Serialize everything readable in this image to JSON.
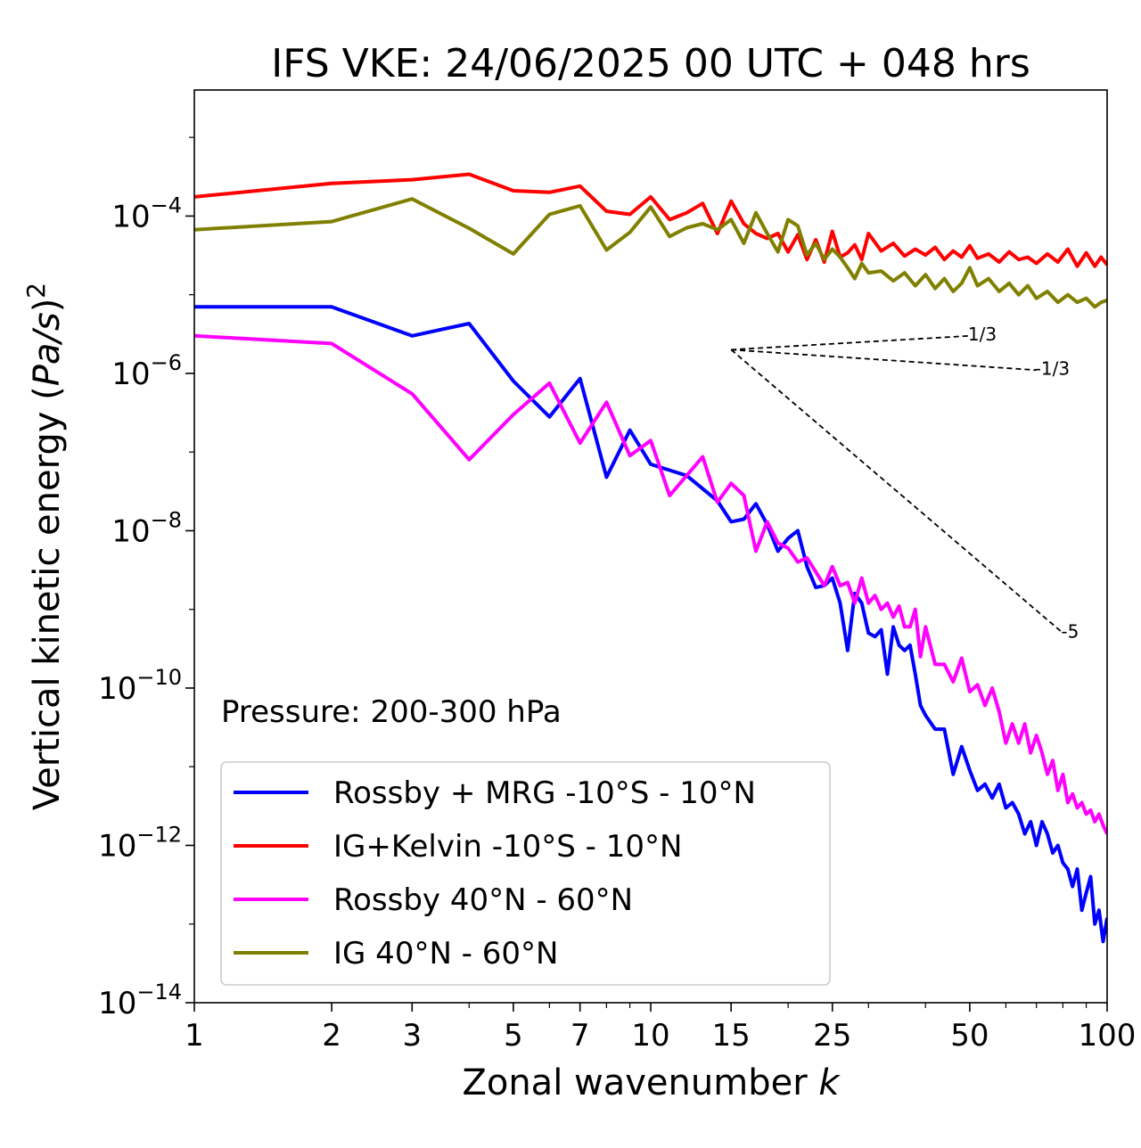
{
  "chart_data": {
    "type": "line",
    "title": "IFS VKE: 24/06/2025 00 UTC + 048 hrs",
    "xlabel": "Zonal wavenumber k",
    "xlabel_main": "Zonal wavenumber ",
    "xlabel_var": "k",
    "ylabel_main": "Vertical kinetic energy (",
    "ylabel_var": "Pa/s",
    "ylabel_close": ")",
    "ylabel_exp": "2",
    "x_scale": "log",
    "y_scale": "log",
    "xlim": [
      1,
      100
    ],
    "ylim": [
      1e-14,
      0.004
    ],
    "x_ticks": [
      1,
      2,
      3,
      5,
      7,
      10,
      15,
      25,
      50,
      100
    ],
    "x_tick_labels": [
      "1",
      "2",
      "3",
      "5",
      "7",
      "10",
      "15",
      "25",
      "50",
      "100"
    ],
    "y_ticks": [
      {
        "value": 0.0001,
        "base": "10",
        "exp": "−4"
      },
      {
        "value": 1e-06,
        "base": "10",
        "exp": "−6"
      },
      {
        "value": 1e-08,
        "base": "10",
        "exp": "−8"
      },
      {
        "value": 1e-10,
        "base": "10",
        "exp": "−10"
      },
      {
        "value": 1e-12,
        "base": "10",
        "exp": "−12"
      },
      {
        "value": 1e-14,
        "base": "10",
        "exp": "−14"
      }
    ],
    "annotation": "Pressure: 200-300 hPa",
    "grid": false,
    "legend_position": "lower-left",
    "series": [
      {
        "name": "Rossby + MRG -10°S - 10°N",
        "color": "#0000ff",
        "x": [
          1,
          2,
          3,
          4,
          5,
          6,
          7,
          8,
          9,
          10,
          12,
          14,
          15,
          16,
          17,
          18,
          19,
          20,
          21,
          22,
          23,
          24,
          25,
          26,
          27,
          28,
          29,
          30,
          31,
          32,
          33,
          34,
          35,
          36,
          37,
          38,
          39,
          40,
          42,
          44,
          46,
          48,
          50,
          52,
          54,
          56,
          58,
          60,
          62,
          64,
          66,
          68,
          70,
          72,
          74,
          76,
          78,
          80,
          82,
          84,
          86,
          88,
          90,
          92,
          94,
          96,
          98,
          100
        ],
        "y": [
          7e-06,
          7e-06,
          3e-06,
          4.3e-06,
          8e-07,
          2.8e-07,
          8.6e-07,
          4.8e-08,
          1.9e-07,
          7e-08,
          5e-08,
          2.4e-08,
          1.3e-08,
          1.4e-08,
          2.2e-08,
          1.2e-08,
          5.5e-09,
          8e-09,
          1e-08,
          3.5e-09,
          1.9e-09,
          2e-09,
          2.5e-09,
          1.2e-09,
          3e-10,
          1.6e-09,
          1.2e-09,
          5e-10,
          4.5e-10,
          5.5e-10,
          1.5e-10,
          6e-10,
          3.5e-10,
          3e-10,
          3.5e-10,
          1.5e-10,
          6e-11,
          4.5e-11,
          3e-11,
          3e-11,
          8e-12,
          1.8e-11,
          9e-12,
          5e-12,
          6e-12,
          4e-12,
          6e-12,
          3e-12,
          3.5e-12,
          2.5e-12,
          1.4e-12,
          2e-12,
          1e-12,
          2e-12,
          1.4e-12,
          8e-13,
          1e-12,
          6e-13,
          5e-13,
          3e-13,
          5e-13,
          1.5e-13,
          2.5e-13,
          4e-13,
          1e-13,
          1.5e-13,
          6e-14,
          1.2e-13
        ]
      },
      {
        "name": "IG+Kelvin -10°S - 10°N",
        "color": "#ff0000",
        "x": [
          1,
          2,
          3,
          4,
          5,
          6,
          7,
          8,
          9,
          10,
          11,
          12,
          13,
          14,
          15,
          16,
          17,
          18,
          19,
          20,
          21,
          22,
          23,
          24,
          25,
          26,
          27,
          28,
          29,
          30,
          32,
          34,
          36,
          38,
          40,
          42,
          44,
          46,
          48,
          50,
          52,
          55,
          58,
          61,
          64,
          67,
          70,
          74,
          78,
          82,
          86,
          90,
          94,
          97,
          100
        ],
        "y": [
          0.000175,
          0.00026,
          0.00029,
          0.00034,
          0.00021,
          0.0002,
          0.00024,
          0.000115,
          0.000105,
          0.000175,
          9e-05,
          0.00011,
          0.000145,
          6e-05,
          0.000155,
          8e-05,
          6e-05,
          5.2e-05,
          6e-05,
          3.5e-05,
          5.8e-05,
          2.8e-05,
          5e-05,
          2.6e-05,
          6.4e-05,
          3e-05,
          3.4e-05,
          4.3e-05,
          2.8e-05,
          6e-05,
          3.6e-05,
          4.5e-05,
          3.1e-05,
          3.8e-05,
          3.2e-05,
          4e-05,
          2.8e-05,
          3.6e-05,
          3e-05,
          4.2e-05,
          2.9e-05,
          3.3e-05,
          2.6e-05,
          3.5e-05,
          2.8e-05,
          3e-05,
          2.5e-05,
          3.3e-05,
          2.6e-05,
          3.8e-05,
          2.3e-05,
          3.4e-05,
          2.3e-05,
          3e-05,
          2.4e-05
        ]
      },
      {
        "name": "Rossby 40°N - 60°N",
        "color": "#ff00ff",
        "x": [
          1,
          2,
          3,
          4,
          5,
          6,
          7,
          8,
          9,
          10,
          11,
          13,
          14,
          15,
          16,
          17,
          18,
          19,
          20,
          21,
          22,
          23,
          24,
          25,
          26,
          27,
          28,
          29,
          30,
          31,
          32,
          33,
          34,
          35,
          36,
          37,
          38,
          39,
          40,
          42,
          44,
          46,
          48,
          50,
          52,
          54,
          56,
          58,
          60,
          62,
          64,
          66,
          68,
          70,
          72,
          74,
          76,
          78,
          80,
          82,
          84,
          86,
          88,
          90,
          92,
          94,
          96,
          98,
          100
        ],
        "y": [
          3e-06,
          2.4e-06,
          5.5e-07,
          8e-08,
          3e-07,
          7.5e-07,
          1.3e-07,
          4.3e-07,
          9e-08,
          1.4e-07,
          2.8e-08,
          8.7e-08,
          2.3e-08,
          4e-08,
          2.8e-08,
          5.5e-09,
          1.3e-08,
          7e-09,
          6e-09,
          4e-09,
          4.5e-09,
          3e-09,
          2e-09,
          3.5e-09,
          2e-09,
          2.2e-09,
          1.2e-09,
          2.5e-09,
          1.2e-09,
          1.5e-09,
          1e-09,
          1.2e-09,
          8e-10,
          1.1e-09,
          6e-10,
          6e-10,
          1e-09,
          2.5e-10,
          6e-10,
          2e-10,
          2e-10,
          1.2e-10,
          2.4e-10,
          9e-11,
          1.1e-10,
          6e-11,
          1e-10,
          5e-11,
          2e-11,
          3.5e-11,
          2e-11,
          3.5e-11,
          1.5e-11,
          2.5e-11,
          1.5e-11,
          8e-12,
          1.2e-11,
          5e-12,
          8e-12,
          3.5e-12,
          4.5e-12,
          3e-12,
          3.5e-12,
          2.5e-12,
          2.8e-12,
          2e-12,
          2.5e-12,
          1.8e-12,
          1.4e-12
        ]
      },
      {
        "name": "IG 40°N - 60°N",
        "color": "#808000",
        "x": [
          1,
          2,
          3,
          4,
          5,
          6,
          7,
          8,
          9,
          10,
          11,
          12,
          13,
          14,
          15,
          16,
          17,
          18,
          19,
          20,
          21,
          22,
          23,
          24,
          25,
          26,
          27,
          28,
          29,
          30,
          32,
          34,
          36,
          38,
          40,
          42,
          44,
          46,
          48,
          50,
          52,
          55,
          58,
          61,
          64,
          67,
          70,
          74,
          78,
          82,
          86,
          90,
          94,
          97,
          100
        ],
        "y": [
          6.7e-05,
          8.5e-05,
          0.000165,
          7e-05,
          3.3e-05,
          0.000105,
          0.000135,
          3.7e-05,
          6.2e-05,
          0.00013,
          5.5e-05,
          7.1e-05,
          8e-05,
          6.7e-05,
          9e-05,
          4.5e-05,
          0.00011,
          6e-05,
          3.5e-05,
          9e-05,
          7.5e-05,
          3.2e-05,
          4.5e-05,
          2.8e-05,
          3.8e-05,
          3e-05,
          2.2e-05,
          1.6e-05,
          2.5e-05,
          1.9e-05,
          2e-05,
          1.5e-05,
          1.9e-05,
          1.3e-05,
          1.8e-05,
          1.2e-05,
          1.6e-05,
          1.1e-05,
          1.4e-05,
          2.2e-05,
          1.3e-05,
          1.6e-05,
          1.1e-05,
          1.4e-05,
          1e-05,
          1.3e-05,
          9e-06,
          1.1e-05,
          8e-06,
          1e-05,
          8e-06,
          9e-06,
          7e-06,
          8e-06,
          8.5e-06
        ]
      }
    ],
    "reference_lines": [
      {
        "label": "1/3",
        "x": [
          15,
          50
        ],
        "y": [
          2e-06,
          3e-06
        ]
      },
      {
        "label": "-1/3",
        "x": [
          15,
          70
        ],
        "y": [
          2e-06,
          1.1e-06
        ]
      },
      {
        "label": "-5",
        "x": [
          15,
          80
        ],
        "y": [
          2e-06,
          5e-10
        ]
      }
    ]
  }
}
